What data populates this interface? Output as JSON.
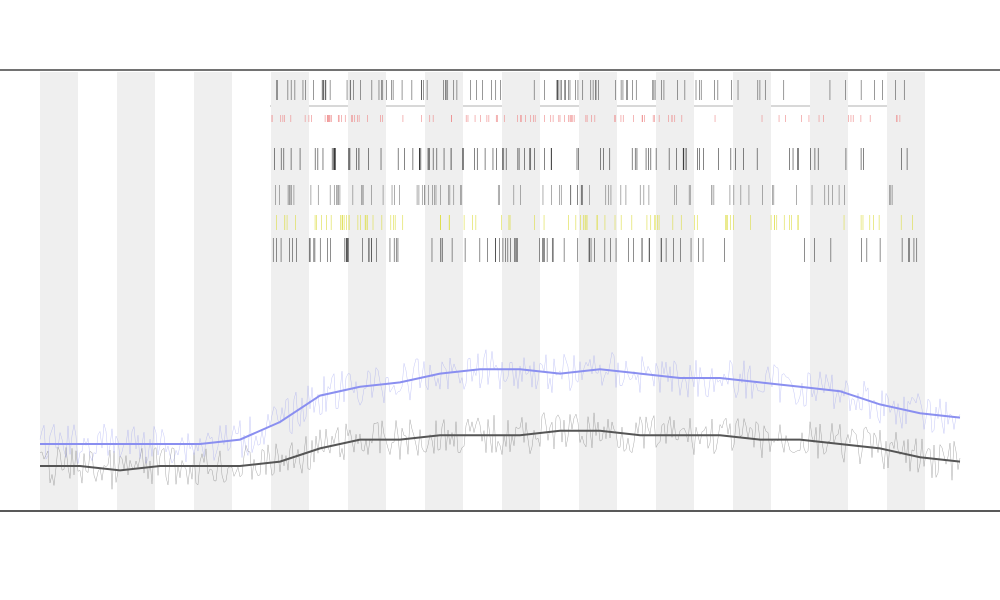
{
  "chart_data": {
    "type": "line",
    "ylim": [
      0,
      100
    ],
    "series": [
      {
        "name": "gray",
        "color": "#555555",
        "values": [
          10,
          10,
          9,
          10,
          10,
          10,
          11,
          14,
          16,
          16,
          17,
          17,
          17,
          18,
          18,
          17,
          17,
          17,
          16,
          16,
          15,
          14,
          12,
          11
        ]
      },
      {
        "name": "blue",
        "color": "#8a8ff0",
        "values": [
          15,
          15,
          15,
          15,
          15,
          16,
          20,
          26,
          28,
          29,
          31,
          32,
          32,
          31,
          32,
          31,
          30,
          30,
          29,
          28,
          27,
          24,
          22,
          21
        ]
      }
    ]
  }
}
